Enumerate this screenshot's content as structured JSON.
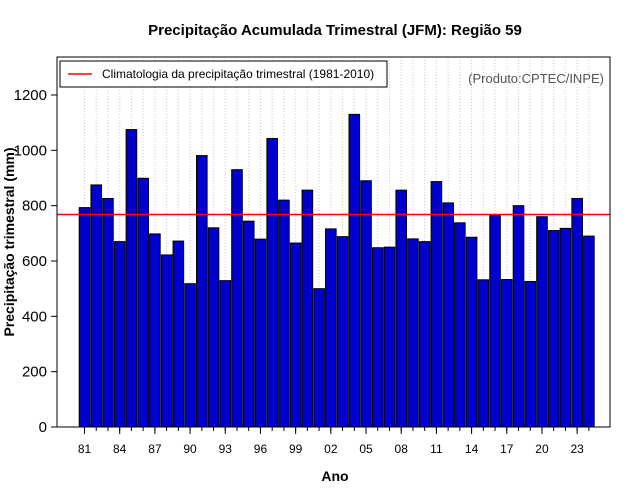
{
  "chart_data": {
    "type": "bar",
    "title": "Precipitação Acumulada Trimestral (JFM): Região 59",
    "xlabel": "Ano",
    "ylabel": "Precipitação trimestral (mm)",
    "ylim": [
      0,
      1320
    ],
    "yticks": [
      0,
      200,
      400,
      600,
      800,
      "1000",
      1200
    ],
    "ytick_labels": [
      "0",
      "200",
      "400",
      "600",
      "800",
      "1000",
      "1200"
    ],
    "xtick_labels": [
      "81",
      "84",
      "87",
      "90",
      "93",
      "96",
      "99",
      "02",
      "05",
      "08",
      "11",
      "14",
      "17",
      "20",
      "23"
    ],
    "xtick_years": [
      1981,
      1984,
      1987,
      1990,
      1993,
      1996,
      1999,
      2002,
      2005,
      2008,
      2011,
      2014,
      2017,
      2020,
      2023
    ],
    "minor_ticks_every_year": true,
    "categories": [
      1981,
      1982,
      1983,
      1984,
      1985,
      1986,
      1987,
      1988,
      1989,
      1990,
      1991,
      1992,
      1993,
      1994,
      1995,
      1996,
      1997,
      1998,
      1999,
      2000,
      2001,
      2002,
      2003,
      2004,
      2005,
      2006,
      2007,
      2008,
      2009,
      2010,
      2011,
      2012,
      2013,
      2014,
      2015,
      2016,
      2017,
      2018,
      2019,
      2020,
      2021,
      2022,
      2023,
      2024
    ],
    "values": [
      793,
      875,
      826,
      670,
      1075,
      899,
      698,
      622,
      672,
      518,
      981,
      720,
      529,
      930,
      744,
      679,
      1043,
      820,
      665,
      856,
      500,
      716,
      688,
      1130,
      890,
      648,
      650,
      856,
      680,
      670,
      887,
      810,
      738,
      686,
      532,
      765,
      533,
      800,
      526,
      760,
      710,
      718,
      826,
      690
    ],
    "bar_color": "#0000cd",
    "reference_line": {
      "name": "Climatologia da precipitação trimestral (1981-2010)",
      "value": 768,
      "color": "#ff0000"
    },
    "legend_position": "top-left",
    "grid": "vertical dotted",
    "credit": "(Produto:CPTEC/INPE)"
  }
}
